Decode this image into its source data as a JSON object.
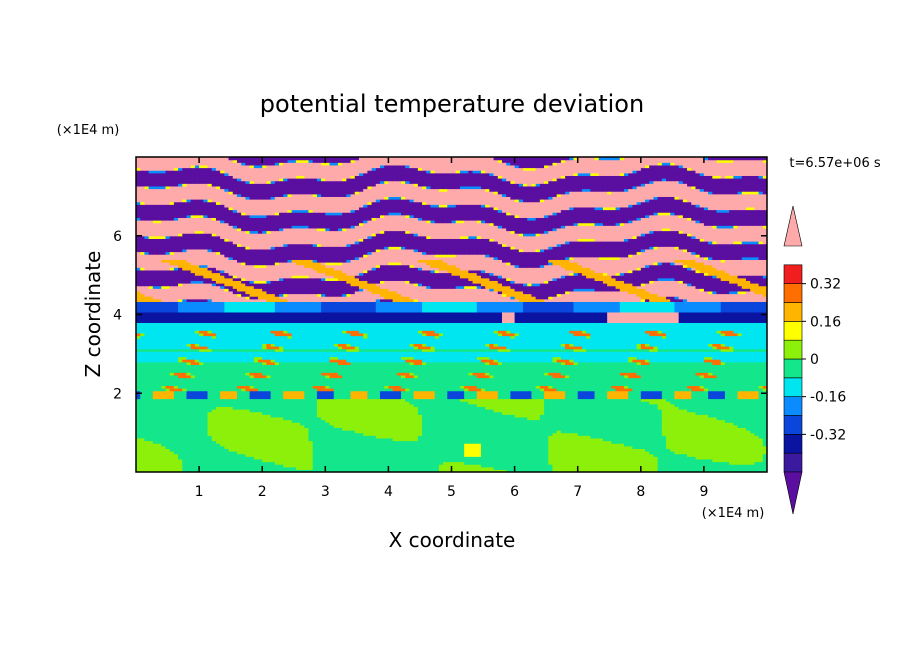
{
  "chart_data": {
    "type": "heatmap",
    "title": "potential temperature deviation",
    "xlabel": "X coordinate",
    "ylabel": "Z coordinate",
    "x_unit": "(×1E4 m)",
    "y_unit": "(×1E4 m)",
    "time_label": "t=6.57e+06 s",
    "xlim": [
      0,
      10
    ],
    "ylim": [
      0,
      8
    ],
    "x_ticks": [
      "1",
      "2",
      "3",
      "4",
      "5",
      "6",
      "7",
      "8",
      "9"
    ],
    "y_ticks": [
      "2",
      "4",
      "6"
    ],
    "colorbar": {
      "tick_labels": [
        "0.32",
        "0.16",
        "0",
        "-0.16",
        "-0.32"
      ],
      "tick_values": [
        0.32,
        0.16,
        0,
        -0.16,
        -0.32
      ],
      "levels": [
        -0.48,
        -0.4,
        -0.32,
        -0.24,
        -0.16,
        -0.08,
        0,
        0.08,
        0.16,
        0.24,
        0.32,
        0.4,
        0.48
      ],
      "colors": [
        "#5a0fa0",
        "#3c1aa0",
        "#0a14a0",
        "#0a46dc",
        "#0a8cff",
        "#00e6f0",
        "#14e68c",
        "#8cf00a",
        "#ffff00",
        "#ffb400",
        "#ff6e00",
        "#f01e1e",
        "#ffaaaa"
      ],
      "extend": "both"
    },
    "bands": [
      {
        "z0": 0.0,
        "z1": 1.85,
        "value": 0.04,
        "note": "lower layer, mostly near zero"
      },
      {
        "z0": 1.85,
        "z1": 2.05,
        "value": -0.2
      },
      {
        "z0": 2.05,
        "z1": 3.8,
        "value": 0.0
      },
      {
        "z0": 3.8,
        "z1": 4.05,
        "value": -0.3
      },
      {
        "z0": 4.05,
        "z1": 4.3,
        "value": -0.12
      },
      {
        "z0": 4.3,
        "z1": 8.0,
        "value": "alternating ±0.5 stripes"
      }
    ]
  }
}
